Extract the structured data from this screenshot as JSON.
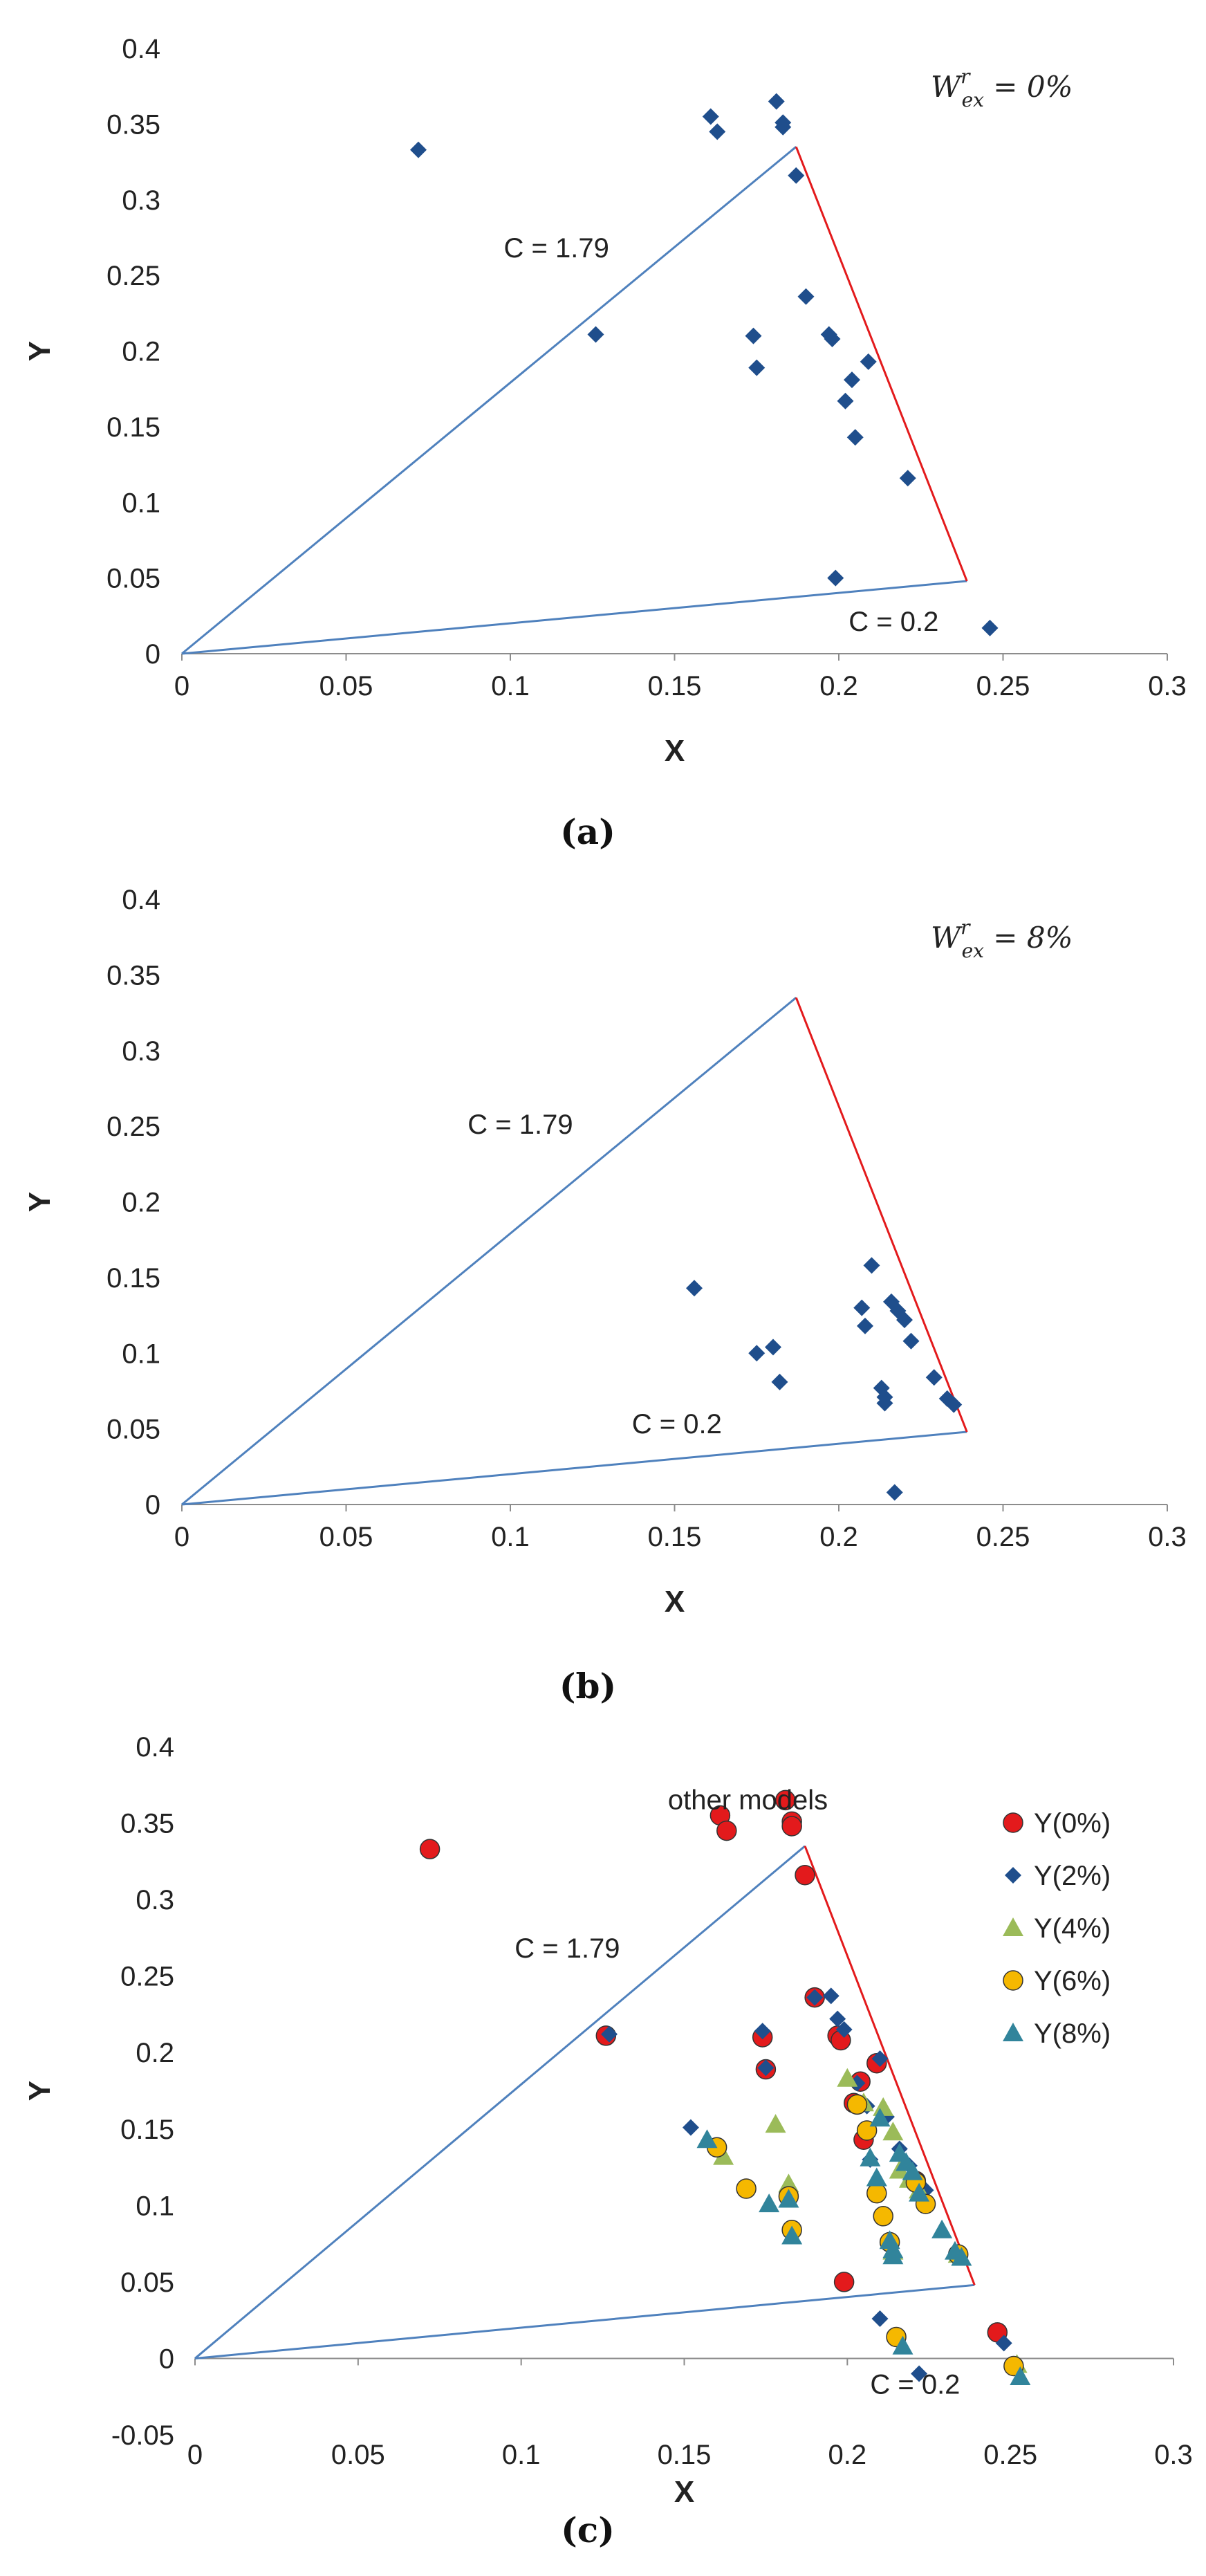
{
  "figure": {
    "captions": [
      "(a)",
      "(b)",
      "(c)"
    ]
  },
  "chart_data": [
    {
      "id": "a",
      "type": "scatter",
      "xlabel": "X",
      "ylabel": "Y",
      "xlim": [
        0,
        0.3
      ],
      "ylim": [
        0,
        0.4
      ],
      "xticks": [
        "0",
        "0.05",
        "0.1",
        "0.15",
        "0.2",
        "0.25",
        "0.3"
      ],
      "yticks": [
        "0",
        "0.05",
        "0.1",
        "0.15",
        "0.2",
        "0.25",
        "0.3",
        "0.35",
        "0.4"
      ],
      "grid": false,
      "wex_label": {
        "base": "W",
        "sup": "r",
        "sub": "ex",
        "value": " = 0%"
      },
      "lines": {
        "c_high": {
          "label": "C = 1.79",
          "from": [
            0,
            0
          ],
          "to": [
            0.187,
            0.335
          ],
          "color": "#4f81bd"
        },
        "c_low": {
          "label": "C = 0.2",
          "from": [
            0,
            0
          ],
          "to": [
            0.239,
            0.048
          ],
          "color": "#4f81bd"
        },
        "boundary": {
          "from": [
            0.187,
            0.335
          ],
          "to": [
            0.239,
            0.048
          ],
          "color": "#e31a1c"
        }
      },
      "series": [
        {
          "name": "Y",
          "marker": "diamond",
          "color": "#1f4e8c",
          "points": [
            [
              0.072,
              0.333
            ],
            [
              0.126,
              0.211
            ],
            [
              0.161,
              0.355
            ],
            [
              0.163,
              0.345
            ],
            [
              0.174,
              0.21
            ],
            [
              0.175,
              0.189
            ],
            [
              0.181,
              0.365
            ],
            [
              0.183,
              0.351
            ],
            [
              0.183,
              0.348
            ],
            [
              0.187,
              0.316
            ],
            [
              0.19,
              0.236
            ],
            [
              0.197,
              0.211
            ],
            [
              0.198,
              0.208
            ],
            [
              0.199,
              0.05
            ],
            [
              0.202,
              0.167
            ],
            [
              0.204,
              0.181
            ],
            [
              0.205,
              0.143
            ],
            [
              0.209,
              0.193
            ],
            [
              0.221,
              0.116
            ],
            [
              0.246,
              0.017
            ]
          ]
        }
      ]
    },
    {
      "id": "b",
      "type": "scatter",
      "xlabel": "X",
      "ylabel": "Y",
      "xlim": [
        0,
        0.3
      ],
      "ylim": [
        0,
        0.4
      ],
      "xticks": [
        "0",
        "0.05",
        "0.1",
        "0.15",
        "0.2",
        "0.25",
        "0.3"
      ],
      "yticks": [
        "0",
        "0.05",
        "0.1",
        "0.15",
        "0.2",
        "0.25",
        "0.3",
        "0.35",
        "0.4"
      ],
      "grid": false,
      "wex_label": {
        "base": "W",
        "sup": "r",
        "sub": "ex",
        "value": " = 8%"
      },
      "lines": {
        "c_high": {
          "label": "C = 1.79",
          "from": [
            0,
            0
          ],
          "to": [
            0.187,
            0.335
          ],
          "color": "#4f81bd"
        },
        "c_low": {
          "label": "C = 0.2",
          "from": [
            0,
            0
          ],
          "to": [
            0.239,
            0.048
          ],
          "color": "#4f81bd"
        },
        "boundary": {
          "from": [
            0.187,
            0.335
          ],
          "to": [
            0.239,
            0.048
          ],
          "color": "#e31a1c"
        }
      },
      "series": [
        {
          "name": "Y",
          "marker": "diamond",
          "color": "#1f4e8c",
          "points": [
            [
              0.156,
              0.143
            ],
            [
              0.175,
              0.1
            ],
            [
              0.18,
              0.104
            ],
            [
              0.182,
              0.081
            ],
            [
              0.207,
              0.13
            ],
            [
              0.208,
              0.118
            ],
            [
              0.21,
              0.158
            ],
            [
              0.213,
              0.077
            ],
            [
              0.214,
              0.071
            ],
            [
              0.214,
              0.067
            ],
            [
              0.216,
              0.134
            ],
            [
              0.218,
              0.128
            ],
            [
              0.22,
              0.122
            ],
            [
              0.222,
              0.108
            ],
            [
              0.217,
              0.008
            ],
            [
              0.229,
              0.084
            ],
            [
              0.233,
              0.07
            ],
            [
              0.235,
              0.066
            ]
          ]
        }
      ]
    },
    {
      "id": "c",
      "type": "scatter",
      "xlabel": "X",
      "ylabel": "Y",
      "xlim": [
        0,
        0.3
      ],
      "ylim": [
        -0.05,
        0.4
      ],
      "xticks": [
        "0",
        "0.05",
        "0.1",
        "0.15",
        "0.2",
        "0.25",
        "0.3"
      ],
      "yticks": [
        "-0.05",
        "0",
        "0.05",
        "0.1",
        "0.15",
        "0.2",
        "0.25",
        "0.3",
        "0.35",
        "0.4"
      ],
      "grid": false,
      "annotation": "other models",
      "legend_position": "top-right",
      "lines": {
        "c_high": {
          "label": "C = 1.79",
          "from": [
            0,
            0
          ],
          "to": [
            0.187,
            0.335
          ],
          "color": "#4f81bd"
        },
        "c_low": {
          "label": "C = 0.2",
          "from": [
            0,
            0
          ],
          "to": [
            0.239,
            0.048
          ],
          "color": "#4f81bd"
        },
        "boundary": {
          "from": [
            0.187,
            0.335
          ],
          "to": [
            0.239,
            0.048
          ],
          "color": "#e31a1c"
        }
      },
      "series": [
        {
          "name": "Y(0%)",
          "marker": "circle",
          "color": "#e31a1c",
          "points": [
            [
              0.072,
              0.333
            ],
            [
              0.126,
              0.211
            ],
            [
              0.161,
              0.355
            ],
            [
              0.163,
              0.345
            ],
            [
              0.174,
              0.21
            ],
            [
              0.175,
              0.189
            ],
            [
              0.181,
              0.365
            ],
            [
              0.183,
              0.351
            ],
            [
              0.183,
              0.348
            ],
            [
              0.187,
              0.316
            ],
            [
              0.19,
              0.236
            ],
            [
              0.197,
              0.211
            ],
            [
              0.198,
              0.208
            ],
            [
              0.199,
              0.05
            ],
            [
              0.202,
              0.167
            ],
            [
              0.204,
              0.181
            ],
            [
              0.205,
              0.143
            ],
            [
              0.209,
              0.193
            ],
            [
              0.221,
              0.116
            ],
            [
              0.246,
              0.017
            ]
          ]
        },
        {
          "name": "Y(2%)",
          "marker": "diamond",
          "color": "#1f4e8c",
          "points": [
            [
              0.127,
              0.212
            ],
            [
              0.152,
              0.151
            ],
            [
              0.174,
              0.214
            ],
            [
              0.175,
              0.19
            ],
            [
              0.19,
              0.236
            ],
            [
              0.195,
              0.237
            ],
            [
              0.197,
              0.222
            ],
            [
              0.199,
              0.215
            ],
            [
              0.203,
              0.18
            ],
            [
              0.206,
              0.165
            ],
            [
              0.207,
              0.13
            ],
            [
              0.21,
              0.196
            ],
            [
              0.212,
              0.158
            ],
            [
              0.216,
              0.137
            ],
            [
              0.219,
              0.126
            ],
            [
              0.221,
              0.118
            ],
            [
              0.224,
              0.11
            ],
            [
              0.21,
              0.026
            ],
            [
              0.222,
              -0.01
            ],
            [
              0.248,
              0.01
            ]
          ]
        },
        {
          "name": "Y(4%)",
          "marker": "triangle",
          "color": "#9bbb59",
          "points": [
            [
              0.162,
              0.132
            ],
            [
              0.178,
              0.153
            ],
            [
              0.182,
              0.114
            ],
            [
              0.2,
              0.183
            ],
            [
              0.205,
              0.167
            ],
            [
              0.211,
              0.164
            ],
            [
              0.214,
              0.148
            ],
            [
              0.216,
              0.123
            ],
            [
              0.219,
              0.117
            ],
            [
              0.222,
              0.11
            ],
            [
              0.214,
              0.07
            ],
            [
              0.234,
              0.068
            ],
            [
              0.252,
              -0.004
            ]
          ]
        },
        {
          "name": "Y(6%)",
          "marker": "circle",
          "color": "#f5b800",
          "points": [
            [
              0.16,
              0.138
            ],
            [
              0.169,
              0.111
            ],
            [
              0.182,
              0.106
            ],
            [
              0.183,
              0.084
            ],
            [
              0.203,
              0.166
            ],
            [
              0.206,
              0.149
            ],
            [
              0.209,
              0.108
            ],
            [
              0.211,
              0.093
            ],
            [
              0.213,
              0.076
            ],
            [
              0.215,
              0.014
            ],
            [
              0.221,
              0.115
            ],
            [
              0.224,
              0.101
            ],
            [
              0.234,
              0.068
            ],
            [
              0.251,
              -0.005
            ]
          ]
        },
        {
          "name": "Y(8%)",
          "marker": "triangle",
          "color": "#31849b",
          "points": [
            [
              0.157,
              0.143
            ],
            [
              0.176,
              0.101
            ],
            [
              0.182,
              0.104
            ],
            [
              0.183,
              0.08
            ],
            [
              0.207,
              0.131
            ],
            [
              0.209,
              0.118
            ],
            [
              0.21,
              0.157
            ],
            [
              0.213,
              0.077
            ],
            [
              0.214,
              0.071
            ],
            [
              0.214,
              0.067
            ],
            [
              0.216,
              0.134
            ],
            [
              0.218,
              0.128
            ],
            [
              0.22,
              0.122
            ],
            [
              0.222,
              0.108
            ],
            [
              0.217,
              0.008
            ],
            [
              0.229,
              0.084
            ],
            [
              0.233,
              0.07
            ],
            [
              0.235,
              0.066
            ],
            [
              0.253,
              -0.012
            ]
          ]
        }
      ]
    }
  ]
}
